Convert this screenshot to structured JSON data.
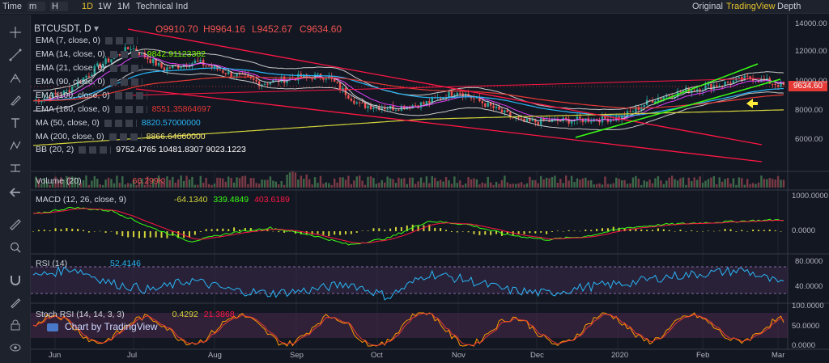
{
  "topbar": {
    "time_label": "Time",
    "minute_sel": "m",
    "hour_sel": "H",
    "intervals": [
      "1D",
      "1W",
      "1M"
    ],
    "active_interval": "1D",
    "technical": "Technical Ind",
    "views": [
      "Original",
      "TradingView",
      "Depth"
    ],
    "active_view": "TradingView"
  },
  "symbol": {
    "name": "BTCUSDT, D",
    "open": "O9910.70",
    "high": "H9964.16",
    "low": "L9452.67",
    "close": "C9634.60"
  },
  "legends": [
    {
      "label": "EMA (7, close, 0)",
      "value": "",
      "color": "#d0d4dc"
    },
    {
      "label": "EMA (14, close, 0)",
      "value": "9842.91123382",
      "color": "#7cfc00"
    },
    {
      "label": "EMA (21, close, 0)",
      "value": "",
      "color": "#d0d4dc"
    },
    {
      "label": "EMA (90, close, 0)",
      "value": "",
      "color": "#d0d4dc"
    },
    {
      "label": "EMA (100, close, 0)",
      "value": "",
      "color": "#d0d4dc"
    },
    {
      "label": "EMA (180, close, 0)",
      "value": "8551.35864697",
      "color": "#e53935"
    },
    {
      "label": "MA (50, close, 0)",
      "value": "8820.57000000",
      "color": "#29b6f6"
    },
    {
      "label": "MA (200, close, 0)",
      "value": "8866.64660000",
      "color": "#fff176"
    },
    {
      "label": "BB (20, 2)",
      "value": "9752.4765   10481.8307   9023.1223",
      "color": "#ffffff"
    }
  ],
  "volume": {
    "label": "Volume (20)",
    "value": "66.299K"
  },
  "macd": {
    "label": "MACD (12, 26, close, 9)",
    "hist": "-64.1340",
    "macd": "339.4849",
    "signal": "403.6189"
  },
  "rsi": {
    "label": "RSI (14)",
    "value": "52.4146"
  },
  "stoch": {
    "label": "Stoch RSI (14, 14, 3, 3)",
    "k": "0.4292",
    "d": "21.3868"
  },
  "watermark": "Chart by TradingView",
  "current_price": "9634.60",
  "price_axis": [
    "14000.00",
    "12000.00",
    "10000.00",
    "8000.00",
    "6000.00"
  ],
  "macd_axis": [
    "1000.0000",
    "0.0000"
  ],
  "rsi_axis": [
    "80.0000",
    "40.0000"
  ],
  "stoch_axis": [
    "100.0000",
    "50.0000",
    "0.0000"
  ],
  "time_axis": [
    "Jun",
    "Jul",
    "Aug",
    "Sep",
    "Oct",
    "Nov",
    "Dec",
    "2020",
    "Feb",
    "Mar"
  ],
  "colors": {
    "up": "#26a69a",
    "down": "#ef5350",
    "ema7": "#d0d4dc",
    "ema14": "#7cfc00",
    "ema180": "#e53935",
    "ma50": "#29b6f6",
    "ma200": "#d4d43a",
    "bb": "#c8c8c8",
    "trend_red": "#ff1744",
    "trend_green": "#39ff14",
    "macd_line": "#39ff14",
    "macd_signal": "#ff1744",
    "macd_hist": "#d4d43a",
    "rsi": "#29b6f6",
    "stoch_k": "#ff9800",
    "stoch_d": "#e53935",
    "arrow": "#ffeb3b"
  },
  "chart_data": {
    "type": "line",
    "title": "BTCUSDT, D",
    "x_label_months": [
      "Jun",
      "Jul",
      "Aug",
      "Sep",
      "Oct",
      "Nov",
      "Dec",
      "2020",
      "Feb",
      "Mar"
    ],
    "ylim": [
      4500,
      14500
    ],
    "series": [
      {
        "name": "BTCUSDT",
        "values": [
          8600,
          9200,
          11000,
          12300,
          10800,
          11300,
          10500,
          9800,
          10200,
          10300,
          8300,
          8100,
          8400,
          9300,
          8200,
          7100,
          7200,
          7300,
          7400,
          8700,
          9300,
          9700,
          10200,
          9634.6
        ]
      },
      {
        "name": "MACD (12, 26, close, 9)",
        "values": [
          500,
          700,
          600,
          100,
          -300,
          -50,
          100,
          -100,
          -400,
          -200,
          300,
          200,
          -100,
          -250,
          -150,
          100,
          200,
          250,
          300,
          339.48
        ]
      },
      {
        "name": "RSI (14)",
        "values": [
          65,
          78,
          55,
          45,
          60,
          45,
          40,
          45,
          55,
          35,
          70,
          60,
          45,
          40,
          50,
          55,
          65,
          70,
          75,
          52.41
        ]
      },
      {
        "name": "Stoch RSI (14, 14, 3, 3)",
        "values": [
          80,
          20,
          90,
          10,
          70,
          30,
          80,
          10,
          50,
          20,
          95,
          40,
          10,
          60,
          20,
          90,
          80,
          30,
          90,
          0.43
        ]
      }
    ],
    "annotations": [
      "9634.60"
    ]
  }
}
